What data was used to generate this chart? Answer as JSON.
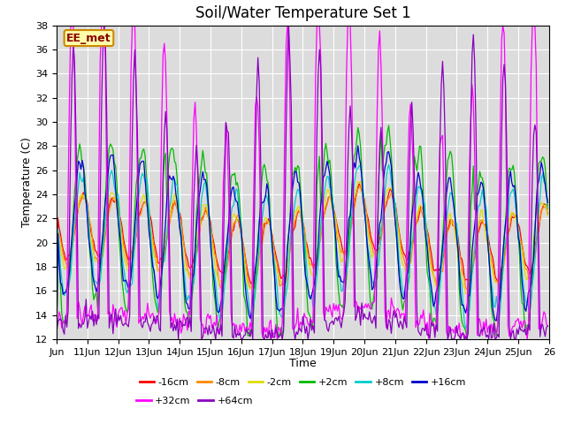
{
  "title": "Soil/Water Temperature Set 1",
  "xlabel": "Time",
  "ylabel": "Temperature (C)",
  "ylim": [
    12,
    38
  ],
  "yticks": [
    12,
    14,
    16,
    18,
    20,
    22,
    24,
    26,
    28,
    30,
    32,
    34,
    36,
    38
  ],
  "bg_color": "#dcdcdc",
  "annotation_text": "EE_met",
  "annotation_bg": "#ffffaa",
  "annotation_border": "#cc8800",
  "figsize": [
    6.4,
    4.8
  ],
  "dpi": 100,
  "series": [
    {
      "label": "-16cm",
      "color": "#ff0000"
    },
    {
      "label": "-8cm",
      "color": "#ff8800"
    },
    {
      "label": "-2cm",
      "color": "#dddd00"
    },
    {
      "label": "+2cm",
      "color": "#00bb00"
    },
    {
      "label": "+8cm",
      "color": "#00cccc"
    },
    {
      "label": "+16cm",
      "color": "#0000cc"
    },
    {
      "label": "+32cm",
      "color": "#ff00ff"
    },
    {
      "label": "+64cm",
      "color": "#8800bb"
    }
  ],
  "x_tick_labels": [
    "Jun",
    "11Jun",
    "12Jun",
    "13Jun",
    "14Jun",
    "15Jun",
    "16Jun",
    "17Jun",
    "18Jun",
    "19Jun",
    "20Jun",
    "21Jun",
    "22Jun",
    "23Jun",
    "24Jun",
    "25Jun",
    "26"
  ],
  "n_days": 16
}
